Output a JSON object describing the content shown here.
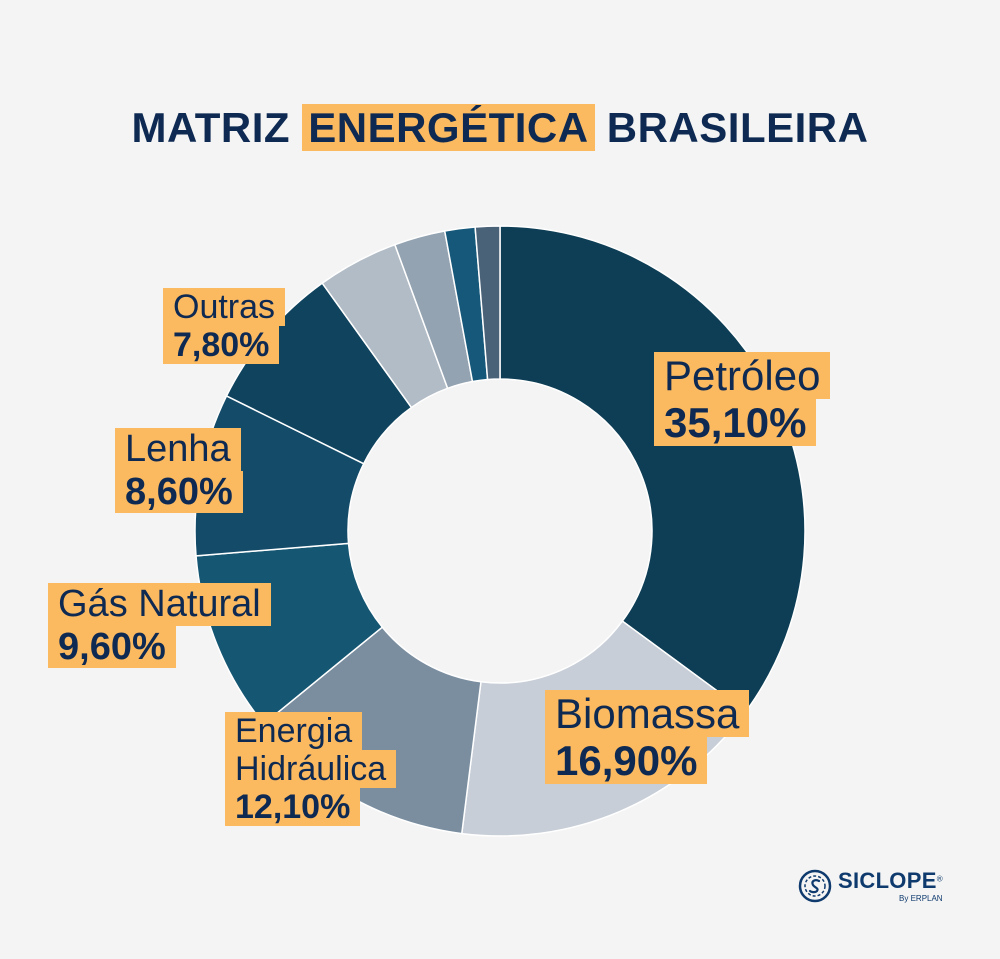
{
  "title": {
    "pre": "MATRIZ ",
    "highlight": "ENERGÉTICA",
    "post": " BRASILEIRA"
  },
  "chart_data": {
    "type": "pie",
    "slices": [
      {
        "name": "Petróleo",
        "label": "35,10%",
        "value": 35.1,
        "color": "#0d3e55"
      },
      {
        "name": "Biomassa",
        "label": "16,90%",
        "value": 16.9,
        "color": "#c7ced7"
      },
      {
        "name": "Energia Hidráulica",
        "name_lines": [
          "Energia",
          "Hidráulica"
        ],
        "label": "12,10%",
        "value": 12.1,
        "color": "#7a8ea0"
      },
      {
        "name": "Gás Natural",
        "label": "9,60%",
        "value": 9.6,
        "color": "#155672"
      },
      {
        "name": "Lenha",
        "label": "8,60%",
        "value": 8.6,
        "color": "#134b69"
      },
      {
        "name": "Outras",
        "label": "7,80%",
        "value": 7.8,
        "color": "#0f435e"
      },
      {
        "value": 4.3,
        "color": "#b2bcc6"
      },
      {
        "value": 2.7,
        "color": "#94a3b1"
      },
      {
        "value": 1.6,
        "color": "#16587a"
      },
      {
        "value": 1.3,
        "color": "#4a6278"
      }
    ]
  },
  "logo": {
    "name": "SICLOPE",
    "reg": "®",
    "sub": "By ERPLAN"
  }
}
